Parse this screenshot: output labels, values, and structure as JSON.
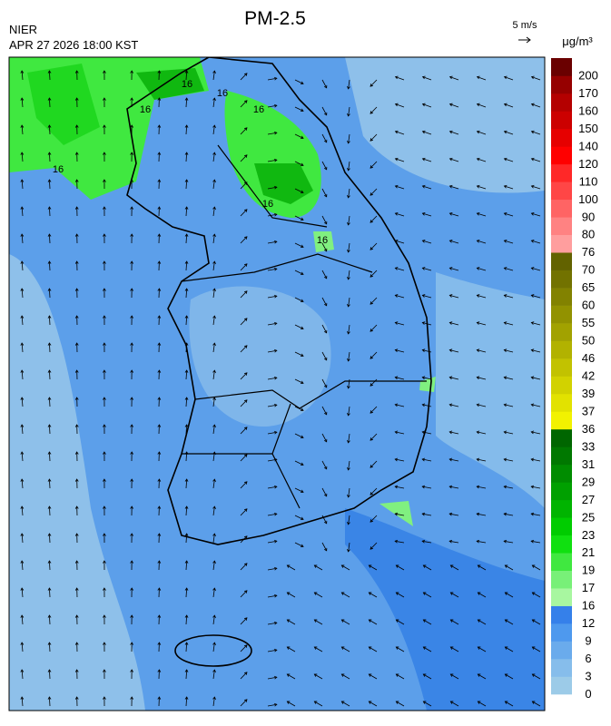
{
  "header": {
    "title": "PM-2.5",
    "agency": "NIER",
    "timestamp": "APR 27 2026 18:00 KST",
    "wind_scale": "5 m/s"
  },
  "legend": {
    "unit": "μg/m³",
    "labels": [
      0,
      3,
      6,
      9,
      12,
      16,
      17,
      19,
      21,
      23,
      25,
      27,
      29,
      31,
      33,
      36,
      37,
      39,
      42,
      46,
      50,
      55,
      60,
      65,
      70,
      76,
      80,
      90,
      100,
      110,
      120,
      140,
      150,
      160,
      170,
      200
    ],
    "colors": [
      "#9ccbe8",
      "#86bdeb",
      "#6aabec",
      "#4e99ee",
      "#3580ea",
      "#a8f7a0",
      "#78f078",
      "#40e840",
      "#10e010",
      "#00cc00",
      "#00b400",
      "#00a000",
      "#008c00",
      "#007800",
      "#006600",
      "#f2f200",
      "#e2e200",
      "#d2d200",
      "#c2c200",
      "#b2b200",
      "#a2a200",
      "#929200",
      "#828200",
      "#727200",
      "#626200",
      "#ff9e9e",
      "#ff8282",
      "#ff6464",
      "#ff4646",
      "#ff2828",
      "#ff0000",
      "#e60000",
      "#cc0000",
      "#b40000",
      "#960000",
      "#6a0000"
    ]
  },
  "map": {
    "contour_labels": [
      "16",
      "16",
      "16",
      "16",
      "16",
      "16",
      "16"
    ]
  }
}
